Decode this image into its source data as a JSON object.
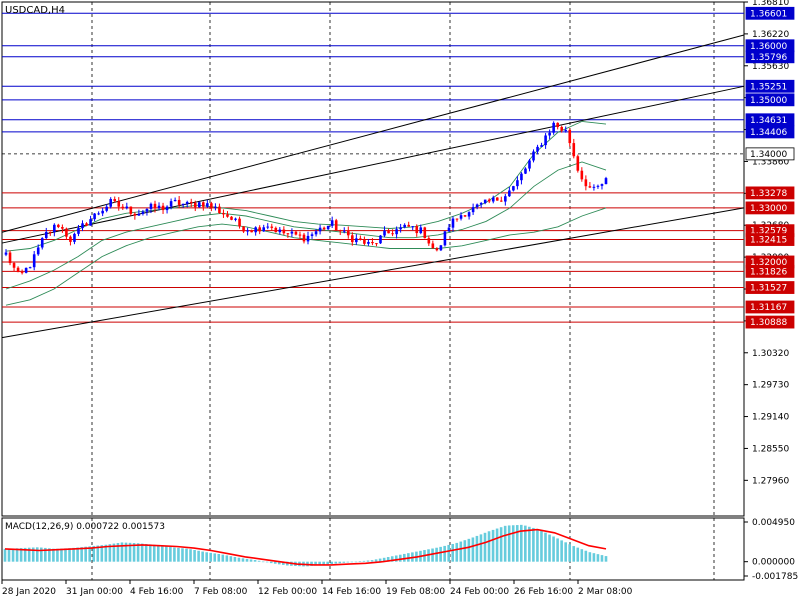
{
  "window": {
    "symbol_label": "USDCAD,H4"
  },
  "macd": {
    "label": "MACD(12,26,9) 0.000722 0.001573"
  },
  "colors": {
    "background": "#ffffff",
    "grid": "#000000",
    "bull": "#0000ff",
    "bear": "#ff0000",
    "ma": "#2e8b57",
    "channel": "#000000",
    "level_blue": "#0000cc",
    "level_red": "#cc0000",
    "macd_hist": "#66ccdd",
    "macd_signal": "#ff0000",
    "fractal": "#a0a0a0"
  },
  "chart_data": [
    {
      "type": "candlestick",
      "title": "USDCAD,H4",
      "ylim": [
        1.273,
        1.3681
      ],
      "price_axis_ticks": [
        "1.36810",
        "1.36220",
        "1.35630",
        "1.35040",
        "1.34450",
        "1.33860",
        "1.33270",
        "1.32680",
        "1.32090",
        "1.31500",
        "1.30910",
        "1.30320",
        "1.29730",
        "1.29140",
        "1.28550",
        "1.27960"
      ],
      "time_axis_labels": [
        "28 Jan 2020",
        "31 Jan 00:00",
        "4 Feb 16:00",
        "7 Feb 08:00",
        "12 Feb 00:00",
        "14 Feb 16:00",
        "19 Feb 08:00",
        "24 Feb 00:00",
        "26 Feb 16:00",
        "2 Mar 08:00"
      ],
      "levels": [
        {
          "label": "1.36601",
          "value": 1.36601,
          "color": "blue"
        },
        {
          "label": "1.36000",
          "value": 1.36,
          "color": "blue"
        },
        {
          "label": "1.35796",
          "value": 1.35796,
          "color": "blue"
        },
        {
          "label": "1.35251",
          "value": 1.35251,
          "color": "blue"
        },
        {
          "label": "1.35000",
          "value": 1.35,
          "color": "blue"
        },
        {
          "label": "1.34631",
          "value": 1.34631,
          "color": "blue"
        },
        {
          "label": "1.34406",
          "value": 1.34406,
          "color": "blue"
        },
        {
          "label": "1.34000",
          "value": 1.34,
          "color": "white"
        },
        {
          "label": "1.33278",
          "value": 1.33278,
          "color": "red"
        },
        {
          "label": "1.33000",
          "value": 1.33,
          "color": "red"
        },
        {
          "label": "1.32579",
          "value": 1.32579,
          "color": "red"
        },
        {
          "label": "1.32415",
          "value": 1.32415,
          "color": "red"
        },
        {
          "label": "1.32000",
          "value": 1.32,
          "color": "red"
        },
        {
          "label": "1.31826",
          "value": 1.31826,
          "color": "red"
        },
        {
          "label": "1.31527",
          "value": 1.31527,
          "color": "red"
        },
        {
          "label": "1.31167",
          "value": 1.31167,
          "color": "red"
        },
        {
          "label": "1.30888",
          "value": 1.30888,
          "color": "red"
        }
      ],
      "close_path": [
        1.3215,
        1.317,
        1.32,
        1.325,
        1.327,
        1.324,
        1.327,
        1.329,
        1.331,
        1.33,
        1.329,
        1.33,
        1.33,
        1.331,
        1.3305,
        1.331,
        1.33,
        1.3285,
        1.3265,
        1.326,
        1.327,
        1.3255,
        1.325,
        1.3245,
        1.326,
        1.327,
        1.325,
        1.324,
        1.323,
        1.325,
        1.326,
        1.3265,
        1.3255,
        1.3215,
        1.327,
        1.329,
        1.33,
        1.331,
        1.332,
        1.334,
        1.338,
        1.342,
        1.3455,
        1.344,
        1.336,
        1.333,
        1.335
      ],
      "ma_lines": [
        [
          1.315,
          1.3165,
          1.3185,
          1.321,
          1.324,
          1.3255,
          1.3265,
          1.3275,
          1.3285,
          1.329,
          1.3285,
          1.3275,
          1.3265,
          1.326,
          1.3255,
          1.325,
          1.3245,
          1.3245,
          1.325,
          1.326,
          1.3275,
          1.33,
          1.334,
          1.337,
          1.3385,
          1.337
        ],
        [
          1.322,
          1.3225,
          1.324,
          1.326,
          1.328,
          1.329,
          1.3295,
          1.33,
          1.3305,
          1.33,
          1.3295,
          1.3285,
          1.3275,
          1.327,
          1.3268,
          1.3265,
          1.3262,
          1.3265,
          1.3275,
          1.329,
          1.331,
          1.334,
          1.34,
          1.344,
          1.346,
          1.3455
        ],
        [
          1.312,
          1.313,
          1.315,
          1.318,
          1.321,
          1.323,
          1.3245,
          1.3255,
          1.3265,
          1.327,
          1.3265,
          1.3255,
          1.3245,
          1.324,
          1.3235,
          1.323,
          1.3225,
          1.3225,
          1.3225,
          1.323,
          1.324,
          1.325,
          1.3255,
          1.3265,
          1.3285,
          1.33
        ]
      ],
      "channel_lines": [
        {
          "from": 1.3255,
          "to": 1.362
        },
        {
          "from": 1.3235,
          "to": 1.3525
        },
        {
          "from": 1.306,
          "to": 1.33
        }
      ]
    },
    {
      "type": "macd",
      "title": "MACD(12,26,9) 0.000722 0.001573",
      "ylim": [
        -0.001785,
        0.00495
      ],
      "axis_ticks": [
        "0.004950",
        "0.000000",
        "-0.001785"
      ],
      "histogram": [
        0.0016,
        0.0017,
        0.0018,
        0.0016,
        0.0017,
        0.0019,
        0.0021,
        0.0024,
        0.0023,
        0.0021,
        0.0018,
        0.0016,
        0.0012,
        0.0009,
        0.0005,
        0.0002,
        -0.0002,
        -0.0005,
        -0.0006,
        -0.0004,
        -0.0002,
        0.0,
        0.0002,
        0.0006,
        0.001,
        0.0014,
        0.0018,
        0.0023,
        0.003,
        0.0038,
        0.0045,
        0.0046,
        0.004,
        0.003,
        0.002,
        0.0012,
        0.0007
      ],
      "signal": [
        0.0016,
        0.0015,
        0.0014,
        0.0015,
        0.0016,
        0.0017,
        0.0019,
        0.002,
        0.0021,
        0.002,
        0.0019,
        0.0017,
        0.0014,
        0.001,
        0.0006,
        0.0003,
        0.0,
        -0.0003,
        -0.0004,
        -0.0004,
        -0.0003,
        -0.0002,
        0.0,
        0.0003,
        0.0006,
        0.001,
        0.0014,
        0.0018,
        0.0024,
        0.0032,
        0.0038,
        0.004,
        0.0036,
        0.0028,
        0.002,
        0.0016
      ]
    }
  ]
}
